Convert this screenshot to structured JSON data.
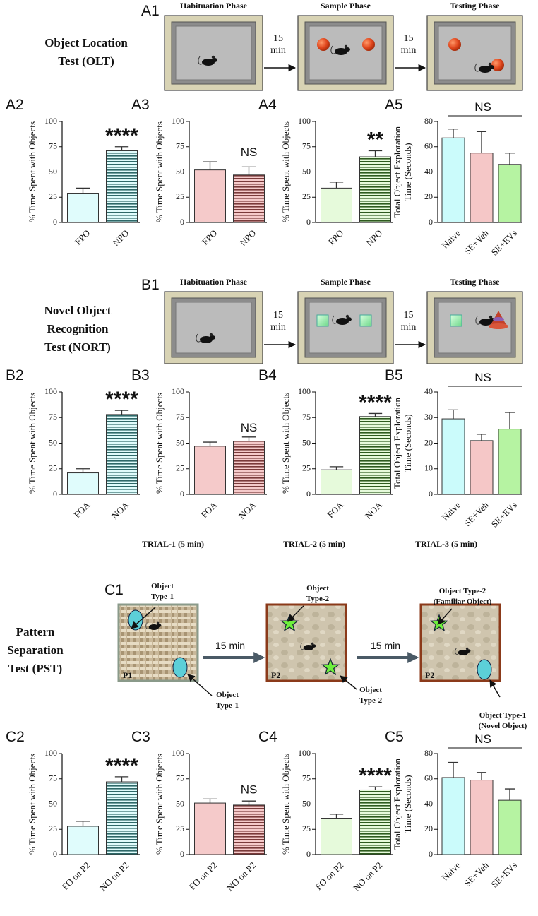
{
  "diagrams": [
    {
      "label": "A1",
      "title": [
        "Object Location",
        "Test (OLT)"
      ],
      "phases": [
        "Habituation Phase",
        "Sample Phase",
        "Testing Phase"
      ],
      "intervals": [
        [
          "15",
          "min"
        ],
        [
          "15",
          "min"
        ]
      ]
    },
    {
      "label": "B1",
      "title": [
        "Novel Object",
        "Recognition",
        "Test (NORT)"
      ],
      "phases": [
        "Habituation Phase",
        "Sample Phase",
        "Testing Phase"
      ],
      "intervals": [
        [
          "15",
          "min"
        ],
        [
          "15",
          "min"
        ]
      ]
    },
    {
      "label": "C1",
      "title": [
        "Pattern",
        "Separation",
        "Test (PST)"
      ],
      "trials": [
        "TRIAL-1 (5 min)",
        "TRIAL-2 (5 min)",
        "TRIAL-3 (5 min)"
      ],
      "intervals": [
        "15 min",
        "15 min"
      ],
      "boards": [
        "P1",
        "P2",
        "P2"
      ],
      "callouts": [
        [
          "Object",
          "Type-1"
        ],
        [
          "Object",
          "Type-1"
        ],
        [
          "Object",
          "Type-2"
        ],
        [
          "Object",
          "Type-2"
        ],
        [
          "Object Type-2",
          "(Familiar Object)"
        ],
        [
          "Object Type-1",
          "(Novel Object)"
        ]
      ]
    }
  ],
  "chart_data": [
    {
      "type": "bar",
      "panel": "A2",
      "ylabel": [
        "% Time Spent with Objects"
      ],
      "categories": [
        "FPO",
        "NPO"
      ],
      "values": [
        29,
        71
      ],
      "errors": [
        5,
        4
      ],
      "colors": [
        "#e0fcfc",
        "#e0fcfc"
      ],
      "hatched": [
        false,
        true
      ],
      "hatch_color": "#2e6868",
      "ylim": [
        0,
        100
      ],
      "yticks": [
        0,
        25,
        50,
        75,
        100
      ],
      "annotation": "****"
    },
    {
      "type": "bar",
      "panel": "A3",
      "ylabel": [
        "% Time Spent with Objects"
      ],
      "categories": [
        "FPO",
        "NPO"
      ],
      "values": [
        52,
        47
      ],
      "errors": [
        8,
        8
      ],
      "colors": [
        "#f5caca",
        "#f5caca"
      ],
      "hatched": [
        false,
        true
      ],
      "hatch_color": "#7a3a3a",
      "ylim": [
        0,
        100
      ],
      "yticks": [
        0,
        25,
        50,
        75,
        100
      ],
      "annotation": "NS"
    },
    {
      "type": "bar",
      "panel": "A4",
      "ylabel": [
        "% Time Spent with Objects"
      ],
      "categories": [
        "FPO",
        "NPO"
      ],
      "values": [
        34,
        65
      ],
      "errors": [
        6,
        6
      ],
      "colors": [
        "#e6fadb",
        "#e6fadb"
      ],
      "hatched": [
        false,
        true
      ],
      "hatch_color": "#2d5a1e",
      "ylim": [
        0,
        100
      ],
      "yticks": [
        0,
        25,
        50,
        75,
        100
      ],
      "annotation": "**"
    },
    {
      "type": "bar",
      "panel": "A5",
      "ylabel": [
        "Total Object Exploration",
        "Time (Seconds)"
      ],
      "categories": [
        "Naive",
        "SE+Veh",
        "SE+EVs"
      ],
      "values": [
        67,
        55,
        46
      ],
      "errors": [
        7,
        17,
        9
      ],
      "colors": [
        "#cbfbfb",
        "#f5c7c7",
        "#b6f3a2"
      ],
      "hatched": [
        false,
        false,
        false
      ],
      "ylim": [
        0,
        80
      ],
      "yticks": [
        0,
        20,
        40,
        60,
        80
      ],
      "annotation": "NS"
    },
    {
      "type": "bar",
      "panel": "B2",
      "ylabel": [
        "% Time Spent with Objects"
      ],
      "categories": [
        "FOA",
        "NOA"
      ],
      "values": [
        21,
        78
      ],
      "errors": [
        4,
        4
      ],
      "colors": [
        "#e0fcfc",
        "#e0fcfc"
      ],
      "hatched": [
        false,
        true
      ],
      "hatch_color": "#2e6868",
      "ylim": [
        0,
        100
      ],
      "yticks": [
        0,
        25,
        50,
        75,
        100
      ],
      "annotation": "****"
    },
    {
      "type": "bar",
      "panel": "B3",
      "ylabel": [
        "% Time Spent with Objects"
      ],
      "categories": [
        "FOA",
        "NOA"
      ],
      "values": [
        47,
        52
      ],
      "errors": [
        4,
        4
      ],
      "colors": [
        "#f5caca",
        "#f5caca"
      ],
      "hatched": [
        false,
        true
      ],
      "hatch_color": "#7a3a3a",
      "ylim": [
        0,
        100
      ],
      "yticks": [
        0,
        25,
        50,
        75,
        100
      ],
      "annotation": "NS"
    },
    {
      "type": "bar",
      "panel": "B4",
      "ylabel": [
        "% Time Spent with Objects"
      ],
      "categories": [
        "FOA",
        "NOA"
      ],
      "values": [
        24,
        76
      ],
      "errors": [
        3,
        3
      ],
      "colors": [
        "#e6fadb",
        "#e6fadb"
      ],
      "hatched": [
        false,
        true
      ],
      "hatch_color": "#2d5a1e",
      "ylim": [
        0,
        100
      ],
      "yticks": [
        0,
        25,
        50,
        75,
        100
      ],
      "annotation": "****"
    },
    {
      "type": "bar",
      "panel": "B5",
      "ylabel": [
        "Total Object Exploration",
        "Time (Seconds)"
      ],
      "categories": [
        "Naive",
        "SE+Veh",
        "SE+EVs"
      ],
      "values": [
        29.5,
        21,
        25.5
      ],
      "errors": [
        3.5,
        2.5,
        6.5
      ],
      "colors": [
        "#cbfbfb",
        "#f5c7c7",
        "#b6f3a2"
      ],
      "hatched": [
        false,
        false,
        false
      ],
      "ylim": [
        0,
        40
      ],
      "yticks": [
        0,
        10,
        20,
        30,
        40
      ],
      "annotation": "NS"
    },
    {
      "type": "bar",
      "panel": "C2",
      "ylabel": [
        "% Time Spent with Objects"
      ],
      "categories": [
        "FO on P2",
        "NO on P2"
      ],
      "values": [
        28,
        72
      ],
      "errors": [
        5,
        5
      ],
      "colors": [
        "#e0fcfc",
        "#e0fcfc"
      ],
      "hatched": [
        false,
        true
      ],
      "hatch_color": "#2e6868",
      "ylim": [
        0,
        100
      ],
      "yticks": [
        0,
        25,
        50,
        75,
        100
      ],
      "annotation": "****"
    },
    {
      "type": "bar",
      "panel": "C3",
      "ylabel": [
        "% Time Spent with Objects"
      ],
      "categories": [
        "FO on P2",
        "NO on P2"
      ],
      "values": [
        51,
        49
      ],
      "errors": [
        4,
        4
      ],
      "colors": [
        "#f5caca",
        "#f5caca"
      ],
      "hatched": [
        false,
        true
      ],
      "hatch_color": "#7a3a3a",
      "ylim": [
        0,
        100
      ],
      "yticks": [
        0,
        25,
        50,
        75,
        100
      ],
      "annotation": "NS"
    },
    {
      "type": "bar",
      "panel": "C4",
      "ylabel": [
        "% Time Spent with Objects"
      ],
      "categories": [
        "FO on P2",
        "NO on P2"
      ],
      "values": [
        36,
        64
      ],
      "errors": [
        4,
        3
      ],
      "colors": [
        "#e6fadb",
        "#e6fadb"
      ],
      "hatched": [
        false,
        true
      ],
      "hatch_color": "#2d5a1e",
      "ylim": [
        0,
        100
      ],
      "yticks": [
        0,
        25,
        50,
        75,
        100
      ],
      "annotation": "****"
    },
    {
      "type": "bar",
      "panel": "C5",
      "ylabel": [
        "Total Object Exploration",
        "Time (Seconds)"
      ],
      "categories": [
        "Naive",
        "SE+Veh",
        "SE+EVs"
      ],
      "values": [
        61,
        59,
        43
      ],
      "errors": [
        12,
        6,
        9
      ],
      "colors": [
        "#cbfbfb",
        "#f5c7c7",
        "#b6f3a2"
      ],
      "hatched": [
        false,
        false,
        false
      ],
      "ylim": [
        0,
        80
      ],
      "yticks": [
        0,
        20,
        40,
        60,
        80
      ],
      "annotation": "NS"
    }
  ]
}
